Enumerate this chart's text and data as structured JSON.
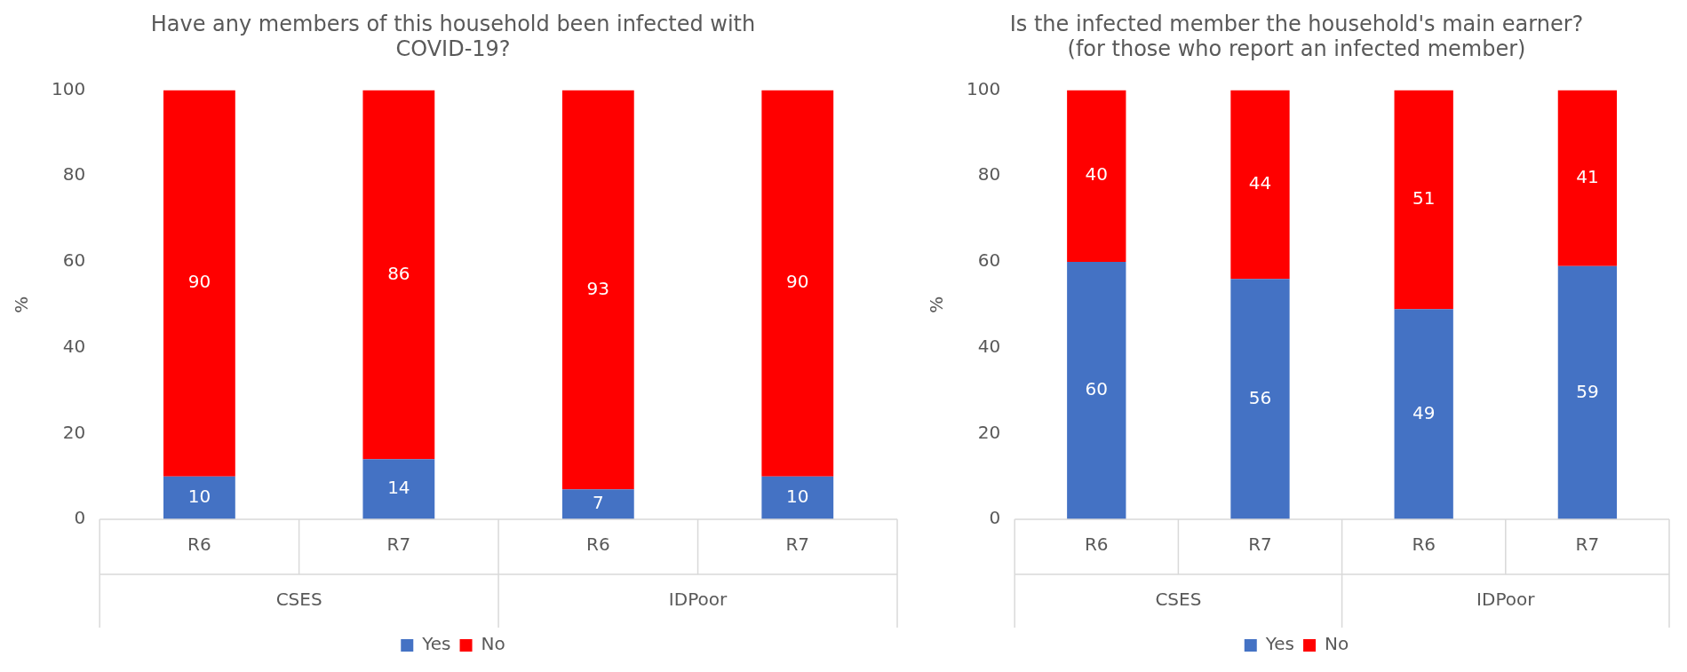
{
  "chart_data": [
    {
      "type": "bar",
      "title": "Have any members of this household been infected with COVID-19?",
      "ylabel": "%",
      "categories": [
        "R6",
        "R7",
        "R6",
        "R7"
      ],
      "annotations": [
        "CSES",
        "IDPoor"
      ],
      "stacked": true,
      "ylim": [
        0,
        100
      ],
      "yticks": [
        0,
        20,
        40,
        60,
        80,
        100
      ],
      "grid": false,
      "legend": "bottom",
      "data_labels": true,
      "series": [
        {
          "name": "Yes",
          "color": "#4472c4",
          "values": [
            10,
            14,
            7,
            10
          ]
        },
        {
          "name": "No",
          "color": "#ff0000",
          "values": [
            90,
            86,
            93,
            90
          ]
        }
      ]
    },
    {
      "type": "bar",
      "title": "Is the infected member the household's main earner?",
      "subtitle": "(for those who report an infected member)",
      "ylabel": "%",
      "categories": [
        "R6",
        "R7",
        "R6",
        "R7"
      ],
      "annotations": [
        "CSES",
        "IDPoor"
      ],
      "stacked": true,
      "ylim": [
        0,
        100
      ],
      "yticks": [
        0,
        20,
        40,
        60,
        80,
        100
      ],
      "grid": false,
      "legend": "bottom",
      "data_labels": true,
      "series": [
        {
          "name": "Yes",
          "color": "#4472c4",
          "values": [
            60,
            56,
            49,
            59
          ]
        },
        {
          "name": "No",
          "color": "#ff0000",
          "values": [
            40,
            44,
            51,
            41
          ]
        }
      ]
    }
  ]
}
